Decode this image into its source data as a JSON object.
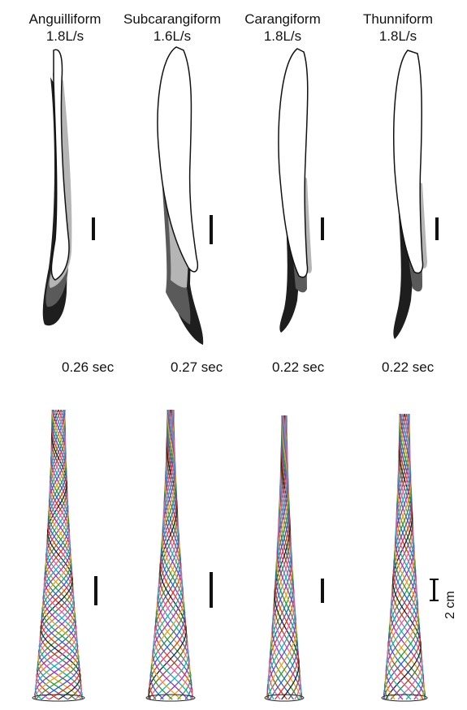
{
  "columns": [
    {
      "title": "Anguilliform",
      "speed": "1.8L/s",
      "time": "0.26 sec"
    },
    {
      "title": "Subcarangiform",
      "speed": "1.6L/s",
      "time": "0.27 sec"
    },
    {
      "title": "Carangiform",
      "speed": "1.8L/s",
      "time": "0.22 sec"
    },
    {
      "title": "Thunniform",
      "speed": "1.8L/s",
      "time": "0.22 sec"
    }
  ],
  "scale_label": "2 cm",
  "colors": {
    "fill_light": "#ffffff",
    "fill_mid": "#b5b5b5",
    "fill_dark": "#5a5a5a",
    "fill_darkest": "#1e1e1e",
    "midline_palette": [
      "#e0352b",
      "#2a63c9",
      "#2f9a3c",
      "#e6a020",
      "#8b3fbf",
      "#1bb0b8",
      "#e05fa0",
      "#7a5a2a",
      "#222222"
    ]
  }
}
